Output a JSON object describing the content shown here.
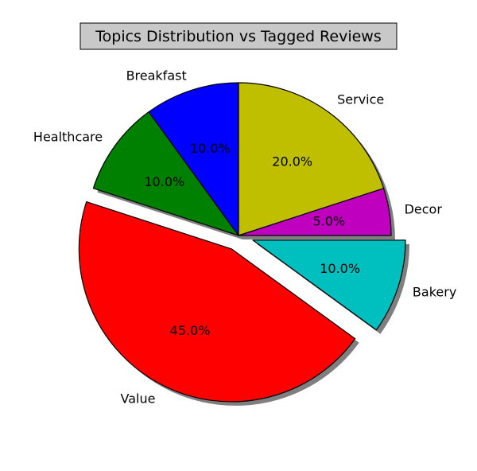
{
  "chart_data": {
    "type": "pie",
    "title": "Topics Distribution vs Tagged Reviews",
    "categories": [
      "Decor",
      "Service",
      "Breakfast",
      "Healthcare",
      "Value",
      "Bakery"
    ],
    "values": [
      5.0,
      20.0,
      10.0,
      10.0,
      45.0,
      10.0
    ],
    "value_labels": [
      "5.0%",
      "20.0%",
      "10.0%",
      "10.0%",
      "45.0%",
      "10.0%"
    ],
    "colors": [
      "#bf00bf",
      "#bfbf00",
      "#0000ff",
      "#008000",
      "#ff0000",
      "#00bfbf"
    ],
    "exploded": [
      false,
      false,
      false,
      false,
      true,
      true
    ],
    "shadow": true,
    "start_angle_deg": 0,
    "direction": "counterclockwise",
    "legend": "none"
  }
}
